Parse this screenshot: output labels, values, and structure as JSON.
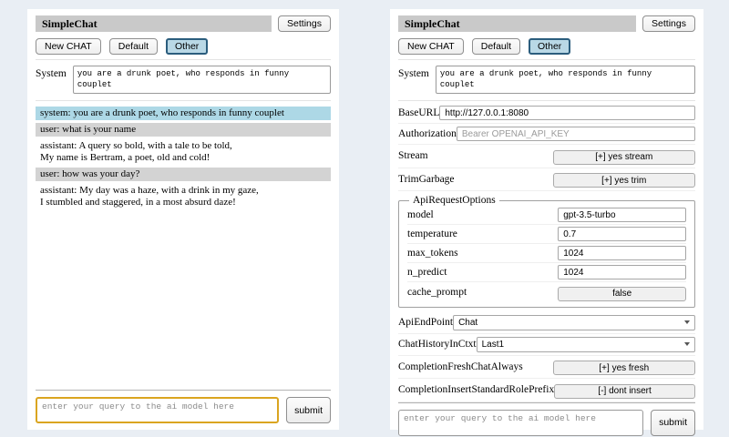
{
  "app": {
    "title": "SimpleChat"
  },
  "header": {
    "settings_label": "Settings",
    "new_chat_label": "New CHAT",
    "sessions": [
      {
        "label": "Default",
        "selected": false
      },
      {
        "label": "Other",
        "selected": true
      }
    ]
  },
  "system_prompt": {
    "label": "System",
    "value": "you are a drunk poet, who responds in funny couplet"
  },
  "chat": {
    "messages": [
      {
        "role": "system",
        "text": "system: you are a drunk poet, who responds in funny couplet"
      },
      {
        "role": "user",
        "text": "user: what is your name"
      },
      {
        "role": "assistant",
        "text": "assistant: A query so bold, with a tale to be told,\nMy name is Bertram, a poet, old and cold!"
      },
      {
        "role": "user",
        "text": "user: how was your day?"
      },
      {
        "role": "assistant",
        "text": "assistant: My day was a haze, with a drink in my gaze,\nI stumbled and staggered, in a most absurd daze!"
      }
    ]
  },
  "settings": {
    "base_url": {
      "label": "BaseURL",
      "value": "http://127.0.0.1:8080"
    },
    "authorization": {
      "label": "Authorization",
      "placeholder": "Bearer OPENAI_API_KEY"
    },
    "stream": {
      "label": "Stream",
      "button": "[+] yes stream"
    },
    "trim_garbage": {
      "label": "TrimGarbage",
      "button": "[+] yes trim"
    },
    "api_request_options": {
      "legend": "ApiRequestOptions",
      "model": {
        "label": "model",
        "value": "gpt-3.5-turbo"
      },
      "temperature": {
        "label": "temperature",
        "value": "0.7"
      },
      "max_tokens": {
        "label": "max_tokens",
        "value": "1024"
      },
      "n_predict": {
        "label": "n_predict",
        "value": "1024"
      },
      "cache_prompt": {
        "label": "cache_prompt",
        "button": "false"
      }
    },
    "api_endpoint": {
      "label": "ApiEndPoint",
      "value": "Chat"
    },
    "chat_history_in_ctxt": {
      "label": "ChatHistoryInCtxt",
      "value": "Last1"
    },
    "completion_fresh_chat_always": {
      "label": "CompletionFreshChatAlways",
      "button": "[+] yes fresh"
    },
    "completion_insert_standard_role_prefix": {
      "label": "CompletionInsertStandardRolePrefix",
      "button": "[-] dont insert"
    }
  },
  "query": {
    "placeholder": "enter your query to the ai model here",
    "submit_label": "submit"
  },
  "colors": {
    "page_bg": "#e9eef4",
    "title_bar_bg": "#c9c9c9",
    "system_message_bg": "#add8e6",
    "user_message_bg": "#d3d3d3",
    "selected_session_border": "#2b5d7d",
    "selected_session_bg": "#b9d8e6",
    "query_focus_border": "#daa520"
  }
}
